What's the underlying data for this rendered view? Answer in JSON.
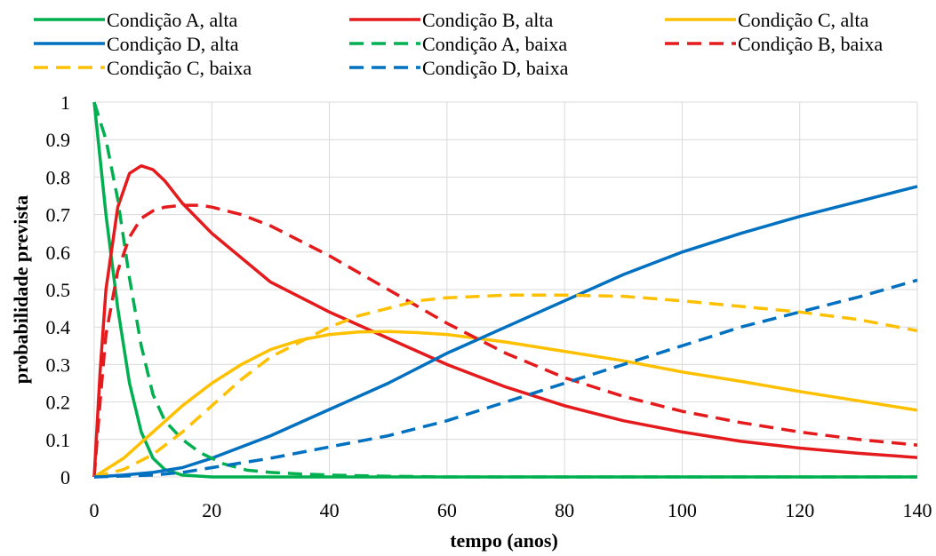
{
  "chart_data": {
    "type": "line",
    "xlabel": "tempo (anos)",
    "ylabel": "probabilidade prevista",
    "xlim": [
      0,
      140
    ],
    "ylim": [
      0,
      1
    ],
    "x_ticks": [
      0,
      20,
      40,
      60,
      80,
      100,
      120,
      140
    ],
    "y_ticks": [
      0,
      0.1,
      0.2,
      0.3,
      0.4,
      0.5,
      0.6,
      0.7,
      0.8,
      0.9,
      1
    ],
    "x_tick_labels": [
      "0",
      "20",
      "40",
      "60",
      "80",
      "100",
      "120",
      "140"
    ],
    "y_tick_labels": [
      "0",
      "0.1",
      "0.2",
      "0.3",
      "0.4",
      "0.5",
      "0.6",
      "0.7",
      "0.8",
      "0.9",
      "1"
    ],
    "grid": true,
    "legend_position": "top",
    "colors": {
      "A": "#00b050",
      "B": "#e41a1c",
      "C": "#ffc000",
      "D": "#0070c0"
    },
    "series": [
      {
        "name": "Condição A, alta",
        "color": "#00b050",
        "dash": "solid",
        "x": [
          0,
          2,
          4,
          6,
          8,
          10,
          12,
          15,
          20,
          30,
          140
        ],
        "y": [
          1.0,
          0.7,
          0.45,
          0.25,
          0.12,
          0.05,
          0.02,
          0.005,
          0.0,
          0.0,
          0.0
        ]
      },
      {
        "name": "Condição B, alta",
        "color": "#e41a1c",
        "dash": "solid",
        "x": [
          0,
          1,
          2,
          4,
          6,
          8,
          10,
          12,
          15,
          20,
          30,
          40,
          50,
          60,
          70,
          80,
          90,
          100,
          110,
          120,
          130,
          140
        ],
        "y": [
          0.0,
          0.28,
          0.5,
          0.72,
          0.81,
          0.83,
          0.82,
          0.79,
          0.73,
          0.65,
          0.52,
          0.44,
          0.37,
          0.3,
          0.24,
          0.19,
          0.15,
          0.12,
          0.095,
          0.077,
          0.063,
          0.052
        ]
      },
      {
        "name": "Condição C, alta",
        "color": "#ffc000",
        "dash": "solid",
        "x": [
          0,
          5,
          10,
          15,
          20,
          25,
          30,
          35,
          40,
          45,
          50,
          55,
          60,
          70,
          80,
          90,
          100,
          110,
          120,
          130,
          140
        ],
        "y": [
          0.0,
          0.05,
          0.12,
          0.19,
          0.25,
          0.3,
          0.34,
          0.365,
          0.38,
          0.387,
          0.388,
          0.385,
          0.38,
          0.36,
          0.335,
          0.31,
          0.28,
          0.255,
          0.228,
          0.203,
          0.178
        ]
      },
      {
        "name": "Condição D, alta",
        "color": "#0070c0",
        "dash": "solid",
        "x": [
          0,
          5,
          10,
          15,
          20,
          25,
          30,
          40,
          50,
          60,
          70,
          80,
          90,
          100,
          110,
          120,
          130,
          140
        ],
        "y": [
          0.0,
          0.005,
          0.012,
          0.025,
          0.05,
          0.08,
          0.11,
          0.18,
          0.25,
          0.33,
          0.4,
          0.47,
          0.54,
          0.6,
          0.65,
          0.695,
          0.735,
          0.775
        ]
      },
      {
        "name": "Condição A, baixa",
        "color": "#00b050",
        "dash": "dashed",
        "x": [
          0,
          2,
          4,
          6,
          8,
          10,
          12,
          15,
          18,
          22,
          26,
          30,
          35,
          40,
          50,
          60,
          140
        ],
        "y": [
          1.0,
          0.9,
          0.74,
          0.53,
          0.35,
          0.22,
          0.15,
          0.1,
          0.065,
          0.035,
          0.018,
          0.012,
          0.008,
          0.005,
          0.002,
          0.0,
          0.0
        ]
      },
      {
        "name": "Condição B, baixa",
        "color": "#e41a1c",
        "dash": "dashed",
        "x": [
          0,
          1,
          2,
          4,
          6,
          8,
          10,
          12,
          15,
          18,
          20,
          25,
          30,
          40,
          50,
          60,
          70,
          80,
          90,
          100,
          110,
          120,
          130,
          140
        ],
        "y": [
          0.0,
          0.2,
          0.38,
          0.55,
          0.64,
          0.69,
          0.71,
          0.72,
          0.725,
          0.725,
          0.72,
          0.7,
          0.67,
          0.59,
          0.5,
          0.41,
          0.33,
          0.265,
          0.215,
          0.175,
          0.145,
          0.12,
          0.1,
          0.085
        ]
      },
      {
        "name": "Condição C, baixa",
        "color": "#ffc000",
        "dash": "dashed",
        "x": [
          0,
          5,
          10,
          15,
          20,
          25,
          30,
          35,
          40,
          45,
          50,
          55,
          60,
          70,
          80,
          90,
          100,
          110,
          120,
          130,
          140
        ],
        "y": [
          0.0,
          0.02,
          0.06,
          0.12,
          0.19,
          0.26,
          0.32,
          0.36,
          0.4,
          0.43,
          0.45,
          0.47,
          0.478,
          0.485,
          0.485,
          0.482,
          0.47,
          0.455,
          0.44,
          0.42,
          0.39
        ]
      },
      {
        "name": "Condição D, baixa",
        "color": "#0070c0",
        "dash": "dashed",
        "x": [
          0,
          10,
          15,
          20,
          30,
          40,
          50,
          60,
          70,
          80,
          90,
          100,
          110,
          120,
          130,
          140
        ],
        "y": [
          0.0,
          0.005,
          0.012,
          0.025,
          0.05,
          0.08,
          0.11,
          0.15,
          0.2,
          0.25,
          0.3,
          0.35,
          0.4,
          0.44,
          0.48,
          0.525
        ]
      }
    ]
  }
}
